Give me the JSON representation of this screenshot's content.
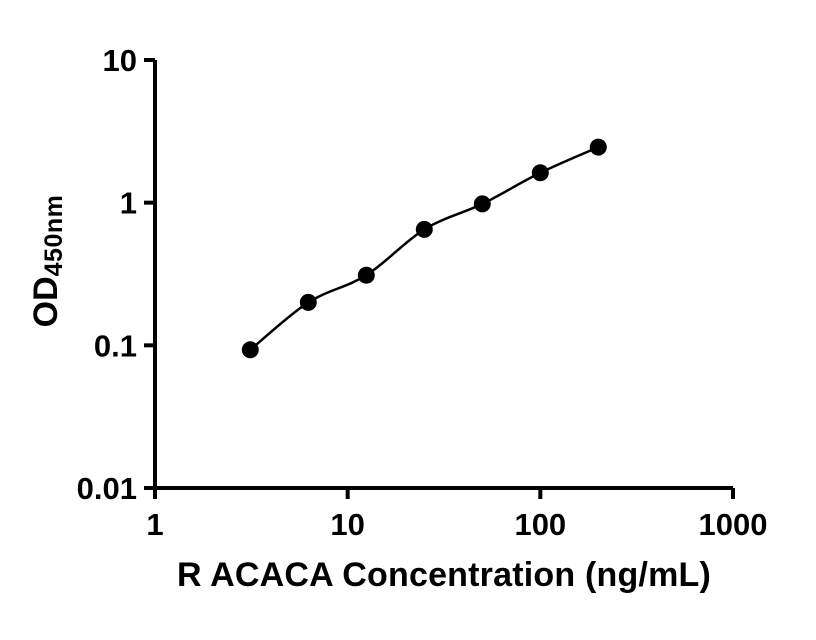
{
  "chart_data": {
    "type": "scatter",
    "title": "",
    "xlabel": "R ACACA Concentration (ng/mL)",
    "ylabel_main": "OD",
    "ylabel_sub": "450nm",
    "x_scale": "log",
    "y_scale": "log",
    "xlim": [
      1,
      1000
    ],
    "ylim": [
      0.01,
      10
    ],
    "x_ticks": [
      1,
      10,
      100,
      1000
    ],
    "y_ticks": [
      0.01,
      0.1,
      1,
      10
    ],
    "x": [
      3.125,
      6.25,
      12.5,
      25,
      50,
      100,
      200
    ],
    "y": [
      0.093,
      0.2,
      0.31,
      0.65,
      0.98,
      1.62,
      2.45
    ],
    "marker_color": "#000000",
    "line_color": "#000000",
    "background_color": "#ffffff",
    "grid": false,
    "legend": false
  }
}
